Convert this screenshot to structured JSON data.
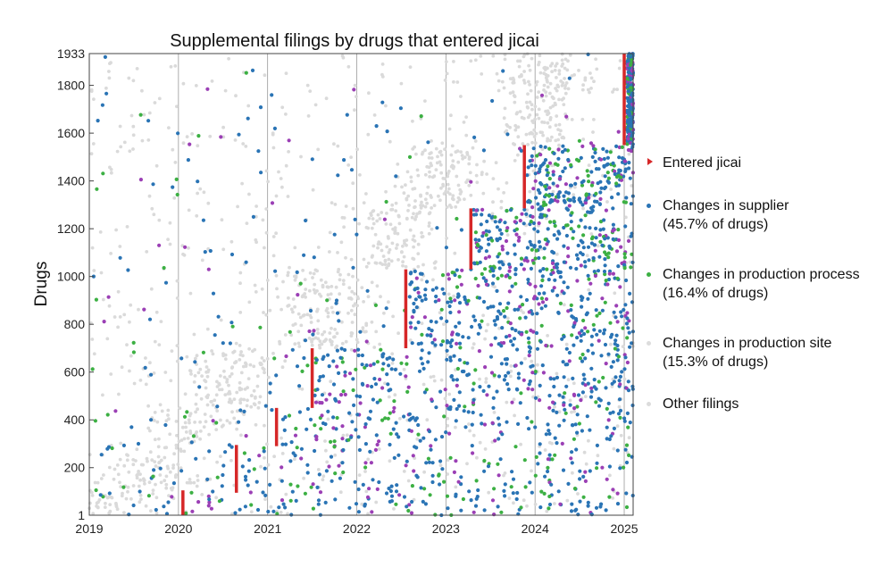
{
  "chart_data": {
    "type": "scatter",
    "title": "Supplemental filings by drugs that entered jicai",
    "xlabel": "",
    "ylabel": "Drugs",
    "x_ticks": [
      "2019",
      "2020",
      "2021",
      "2022",
      "2023",
      "2024",
      "2025"
    ],
    "xlim": [
      2019,
      2025.1
    ],
    "ylim": [
      1,
      1933
    ],
    "y_ticks": [
      1,
      200,
      400,
      600,
      800,
      1000,
      1200,
      1400,
      1600,
      1800,
      1933
    ],
    "grid": "vertical lines at each year",
    "legend_placement": "right",
    "entered_jicai": [
      {
        "x": 2020.05,
        "y_start": 1,
        "y_end": 105
      },
      {
        "x": 2020.65,
        "y_start": 95,
        "y_end": 295
      },
      {
        "x": 2021.1,
        "y_start": 290,
        "y_end": 450
      },
      {
        "x": 2021.5,
        "y_start": 450,
        "y_end": 700
      },
      {
        "x": 2022.55,
        "y_start": 700,
        "y_end": 1030
      },
      {
        "x": 2023.28,
        "y_start": 1030,
        "y_end": 1285
      },
      {
        "x": 2023.88,
        "y_start": 1285,
        "y_end": 1550
      },
      {
        "x": 2025.0,
        "y_start": 1550,
        "y_end": 1933
      }
    ],
    "series": [
      {
        "name": "Entered jicai",
        "marker": "triangle",
        "color": "#d62728"
      },
      {
        "name": "Changes in supplier",
        "subtitle": "(45.7% of drugs)",
        "color": "#2a74b5"
      },
      {
        "name": "Changes in production process",
        "subtitle": "(16.4% of drugs)",
        "color": "#3cb043"
      },
      {
        "name": "Changes in production site",
        "subtitle": "(15.3% of drugs)",
        "color": "#9b3fb5"
      },
      {
        "name": "Other filings",
        "subtitle": "",
        "color": "#dadada"
      }
    ]
  }
}
